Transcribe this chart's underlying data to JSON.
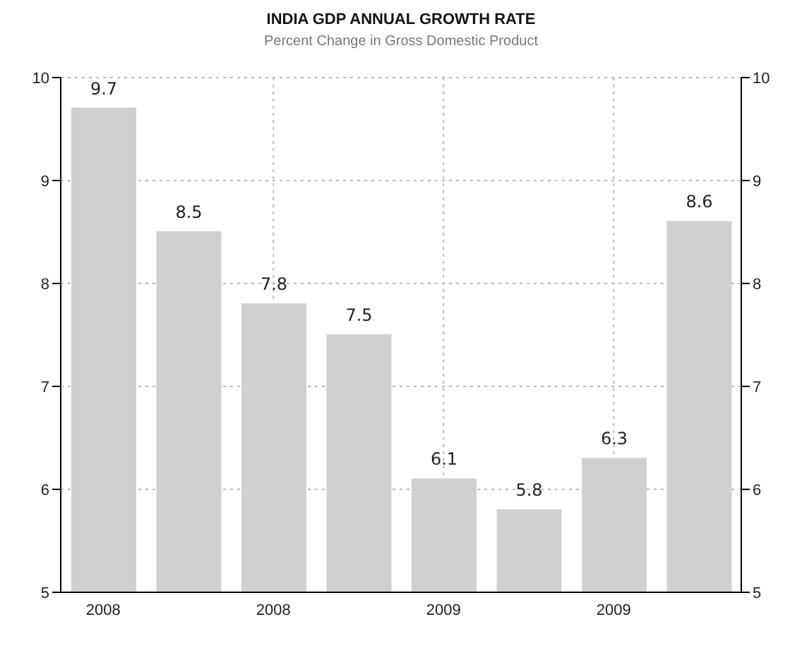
{
  "chart_data": {
    "type": "bar",
    "title": "INDIA GDP ANNUAL GROWTH RATE",
    "subtitle": "Percent Change in Gross Domestic Product",
    "categories": [
      "2008",
      null,
      "2008",
      null,
      "2009",
      null,
      "2009",
      null
    ],
    "values": [
      9.7,
      8.5,
      7.8,
      7.5,
      6.1,
      5.8,
      6.3,
      8.6
    ],
    "color": "#d0d0d0",
    "ylim": [
      5,
      10
    ],
    "yticks": [
      5,
      6,
      7,
      8,
      9,
      10
    ],
    "y2lim": [
      5,
      10
    ],
    "y2ticks": [
      5,
      6,
      7,
      8,
      9,
      10
    ],
    "data_labels": true,
    "grid": true
  }
}
